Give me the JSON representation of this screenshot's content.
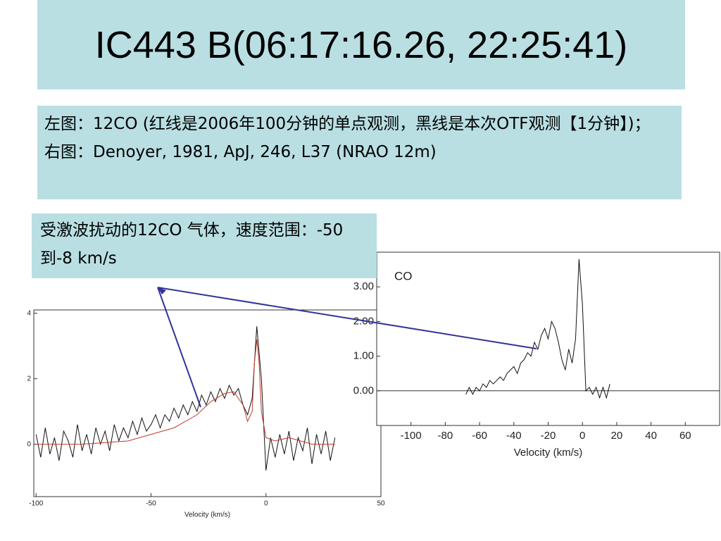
{
  "title": "IC443 B(06:17:16.26, 22:25:41)",
  "notes": [
    "左图：12CO (红线是2006年100分钟的单点观测，黑线是本次OTF观测【1分钟】)；",
    "右图：Denoyer, 1981, ApJ, 246, L37 (NRAO 12m)"
  ],
  "callout": "受激波扰动的12CO 气体，速度范围：-50到-8 km/s",
  "chart_data": [
    {
      "type": "line",
      "xlabel": "Velocity (km/s)",
      "xlim": [
        -101,
        50
      ],
      "ylim": [
        -1.6,
        4.1
      ],
      "xticks": [
        -100,
        -50,
        0,
        50
      ],
      "yticks": [
        0,
        2,
        4
      ],
      "series": [
        {
          "color": "#111111",
          "x": [
            -100,
            -98,
            -96,
            -94,
            -92,
            -90,
            -88,
            -86,
            -84,
            -82,
            -80,
            -78,
            -76,
            -74,
            -72,
            -70,
            -68,
            -66,
            -64,
            -62,
            -60,
            -58,
            -56,
            -54,
            -52,
            -50,
            -48,
            -46,
            -44,
            -42,
            -40,
            -38,
            -36,
            -34,
            -32,
            -30,
            -28,
            -26,
            -24,
            -22,
            -20,
            -18,
            -16,
            -14,
            -12,
            -10,
            -8,
            -6,
            -4,
            -2,
            0,
            2,
            4,
            6,
            8,
            10,
            12,
            14,
            16,
            18,
            20,
            22,
            24,
            26,
            28,
            30
          ],
          "values": [
            0.3,
            -0.4,
            0.5,
            -0.3,
            0.2,
            -0.5,
            0.4,
            0.1,
            -0.4,
            0.6,
            -0.2,
            0.3,
            -0.3,
            0.5,
            0.0,
            0.4,
            -0.2,
            0.6,
            0.1,
            0.5,
            0.2,
            0.7,
            0.3,
            0.8,
            0.4,
            0.6,
            0.9,
            0.5,
            0.9,
            0.7,
            1.1,
            0.8,
            1.2,
            0.9,
            1.3,
            1.0,
            1.5,
            1.2,
            1.6,
            1.3,
            1.7,
            1.4,
            1.8,
            1.5,
            1.7,
            1.2,
            0.9,
            1.4,
            3.6,
            2.0,
            -0.8,
            0.2,
            -0.4,
            0.3,
            -0.3,
            0.4,
            -0.5,
            0.2,
            -0.2,
            0.5,
            -0.6,
            0.3,
            -0.3,
            0.4,
            -0.5,
            0.2
          ]
        },
        {
          "color": "#c0392b",
          "x": [
            -100,
            -80,
            -60,
            -50,
            -40,
            -30,
            -24,
            -18,
            -14,
            -10,
            -8,
            -6,
            -5,
            -4,
            -3,
            -2,
            0,
            4,
            10,
            20,
            30
          ],
          "values": [
            0,
            0,
            0.1,
            0.3,
            0.5,
            0.9,
            1.3,
            1.55,
            1.6,
            1.2,
            0.7,
            1.0,
            2.5,
            3.2,
            2.5,
            1.0,
            0.2,
            0.1,
            0.2,
            0,
            0
          ]
        }
      ]
    },
    {
      "type": "line",
      "label": "CO",
      "xlabel": "Velocity (km/s)",
      "xlim": [
        -120,
        80
      ],
      "ylim": [
        -1.0,
        4.0
      ],
      "xticks": [
        -100,
        -80,
        -60,
        -40,
        -20,
        0,
        20,
        40,
        60
      ],
      "yticks": [
        {
          "value": 0,
          "label": "0.00"
        },
        {
          "value": 1,
          "label": "1.00"
        },
        {
          "value": 2,
          "label": "2.00"
        },
        {
          "value": 3,
          "label": "3.00"
        }
      ],
      "series": [
        {
          "color": "#111111",
          "x": [
            -68,
            -66,
            -64,
            -62,
            -60,
            -58,
            -56,
            -54,
            -52,
            -50,
            -48,
            -46,
            -44,
            -42,
            -40,
            -38,
            -36,
            -34,
            -32,
            -30,
            -28,
            -26,
            -24,
            -22,
            -20,
            -18,
            -16,
            -14,
            -12,
            -10,
            -8,
            -6,
            -4,
            -2,
            0,
            2,
            4,
            6,
            8,
            10,
            12,
            14,
            16
          ],
          "values": [
            -0.1,
            0.1,
            -0.1,
            0.1,
            0.0,
            0.2,
            0.1,
            0.3,
            0.2,
            0.3,
            0.4,
            0.3,
            0.5,
            0.6,
            0.7,
            0.5,
            0.8,
            0.9,
            1.1,
            1.0,
            1.4,
            1.2,
            1.6,
            1.8,
            1.5,
            2.0,
            1.8,
            1.4,
            0.9,
            0.6,
            1.2,
            0.8,
            1.5,
            3.8,
            2.5,
            0.0,
            0.1,
            -0.1,
            0.1,
            -0.2,
            0.1,
            -0.2,
            0.2
          ]
        }
      ]
    }
  ]
}
